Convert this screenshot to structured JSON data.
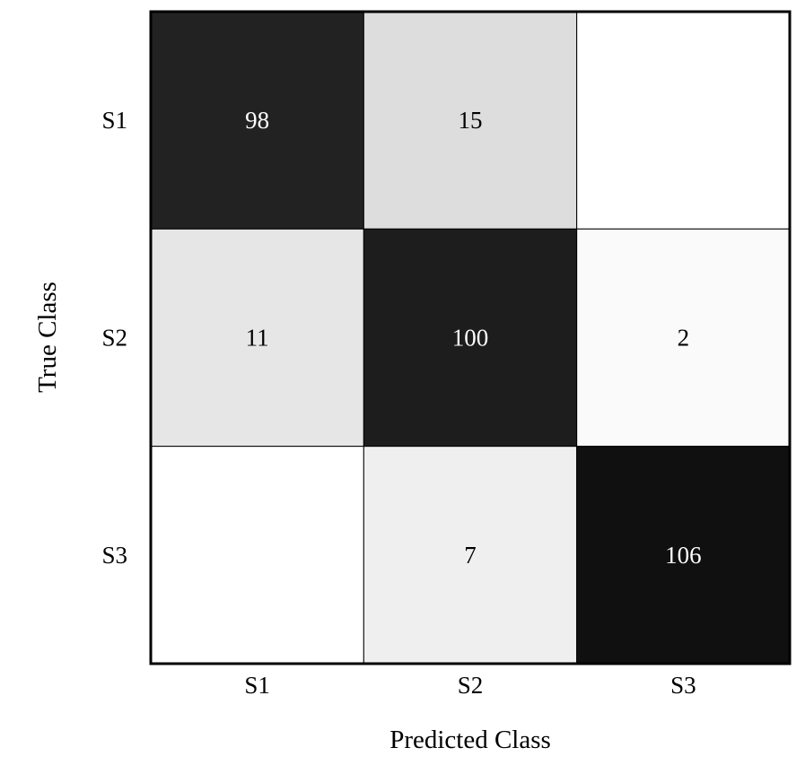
{
  "chart_data": {
    "type": "heatmap",
    "title": "",
    "xlabel": "Predicted Class",
    "ylabel": "True Class",
    "x_categories": [
      "S1",
      "S2",
      "S3"
    ],
    "y_categories": [
      "S1",
      "S2",
      "S3"
    ],
    "values": [
      [
        98,
        15,
        0
      ],
      [
        11,
        100,
        2
      ],
      [
        0,
        7,
        106
      ]
    ],
    "cell_labels": [
      [
        "98",
        "15",
        ""
      ],
      [
        "11",
        "100",
        "2"
      ],
      [
        "",
        "7",
        "106"
      ]
    ],
    "colormap": [
      "#ffffff",
      "#000000"
    ],
    "vmin": 0,
    "vmax": 113,
    "grid": true,
    "legend": "none"
  }
}
